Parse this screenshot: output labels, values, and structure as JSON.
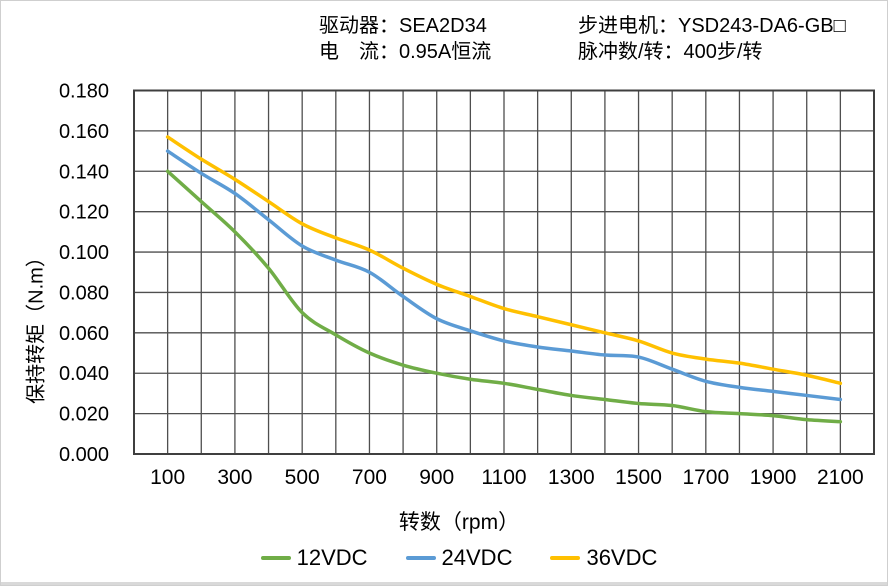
{
  "header": {
    "driver_label": "驱动器：SEA2D34",
    "current_label": "电　流：0.95A恒流",
    "motor_label": "步进电机：YSD243-DA6-GB□",
    "pulses_label": "脉冲数/转：400步/转"
  },
  "chart_data": {
    "type": "line",
    "title": "",
    "xlabel": "转数（rpm）",
    "ylabel": "保持转矩（N.m）",
    "xlim": [
      0,
      2200
    ],
    "ylim": [
      0,
      0.18
    ],
    "x_ticks": [
      100,
      300,
      500,
      700,
      900,
      1100,
      1300,
      1500,
      1700,
      1900,
      2100
    ],
    "y_ticks": [
      0.0,
      0.02,
      0.04,
      0.06,
      0.08,
      0.1,
      0.12,
      0.14,
      0.16,
      0.18
    ],
    "y_tick_decimals": 3,
    "x_grid_step": 100,
    "y_grid_step": 0.02,
    "grid": "on",
    "grid_color": "#4f4f4f",
    "border_color": "#3f3f3f",
    "legend_position": "bottom",
    "x": [
      100,
      200,
      300,
      400,
      500,
      600,
      700,
      800,
      900,
      1000,
      1100,
      1200,
      1300,
      1400,
      1500,
      1600,
      1700,
      1800,
      1900,
      2000,
      2100
    ],
    "series": [
      {
        "name": "12VDC",
        "color": "#70AD47",
        "values": [
          0.14,
          0.125,
          0.11,
          0.092,
          0.07,
          0.059,
          0.05,
          0.044,
          0.04,
          0.037,
          0.035,
          0.032,
          0.029,
          0.027,
          0.025,
          0.024,
          0.021,
          0.02,
          0.019,
          0.017,
          0.016
        ]
      },
      {
        "name": "24VDC",
        "color": "#5B9BD5",
        "values": [
          0.15,
          0.139,
          0.129,
          0.116,
          0.103,
          0.096,
          0.09,
          0.078,
          0.067,
          0.061,
          0.056,
          0.053,
          0.051,
          0.049,
          0.048,
          0.042,
          0.036,
          0.033,
          0.031,
          0.029,
          0.027
        ]
      },
      {
        "name": "36VDC",
        "color": "#FFC000",
        "values": [
          0.157,
          0.146,
          0.136,
          0.125,
          0.114,
          0.107,
          0.101,
          0.092,
          0.084,
          0.078,
          0.072,
          0.068,
          0.064,
          0.06,
          0.056,
          0.05,
          0.047,
          0.045,
          0.042,
          0.039,
          0.035
        ]
      }
    ]
  }
}
